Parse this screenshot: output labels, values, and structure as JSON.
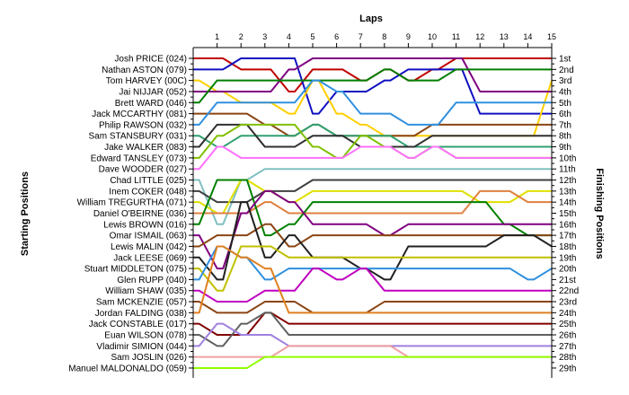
{
  "chart_data": {
    "type": "line",
    "title": "Laps",
    "ylabel_left": "Starting Positions",
    "ylabel_right": "Finishing Positions",
    "laps": [
      1,
      2,
      3,
      4,
      5,
      6,
      7,
      8,
      9,
      10,
      11,
      12,
      13,
      14,
      15
    ],
    "x_tick_labels": [
      "1",
      "2",
      "3",
      "4",
      "5",
      "6",
      "7",
      "8",
      "9",
      "10",
      "11",
      "12",
      "13",
      "14",
      "15"
    ],
    "y_range_positions": [
      1,
      29
    ],
    "grid": false,
    "start_labels": [
      "Josh PRICE (024)",
      "Nathan ASTON (079)",
      "Tom HARVEY (00C)",
      "Jai NIJJAR (052)",
      "Brett WARD (046)",
      "Jack MCCARTHY (081)",
      "Philip RAWSON (032)",
      "Sam STANSBURY (031)",
      "Jake WALKER (083)",
      "Edward TANSLEY (073)",
      "Dave WOODER (027)",
      "Chad LITTLE (025)",
      "Inem COKER (048)",
      "William TREGURTHA (071)",
      "Daniel O'BEIRNE (036)",
      "Lewis BROWN (016)",
      "Omar ISMAIL (063)",
      "Lewis MALIN (042)",
      "Jack LEESE (069)",
      "Stuart MIDDLETON (075)",
      "Glen RUPP (040)",
      "William SHAW (035)",
      "Sam MCKENZIE (057)",
      "Jordan FALDING (038)",
      "Jack CONSTABLE (017)",
      "Euan WILSON (078)",
      "Vladimir SIMION (044)",
      "Sam JOSLIN (026)",
      "Manuel MALDONALDO (059)"
    ],
    "finish_labels": [
      "1st",
      "2nd",
      "3rd",
      "4th",
      "5th",
      "6th",
      "7th",
      "8th",
      "9th",
      "10th",
      "11th",
      "12th",
      "13th",
      "14th",
      "15th",
      "16th",
      "17th",
      "18th",
      "19th",
      "20th",
      "21st",
      "22nd",
      "23rd",
      "24th",
      "25th",
      "26th",
      "27th",
      "28th",
      "29th"
    ],
    "series": [
      {
        "name": "Josh PRICE (024)",
        "color": "#c00000",
        "start": 1,
        "positions": [
          1,
          2,
          2,
          4,
          2,
          2,
          3,
          2,
          3,
          2,
          1,
          1,
          1,
          1,
          1
        ]
      },
      {
        "name": "Nathan ASTON (079)",
        "color": "#1010c0",
        "start": 2,
        "positions": [
          2,
          1,
          1,
          1,
          6,
          4,
          4,
          3,
          2,
          2,
          2,
          6,
          6,
          6,
          6
        ]
      },
      {
        "name": "Tom HARVEY (00C)",
        "color": "#ffd000",
        "start": 3,
        "positions": [
          4,
          5,
          5,
          6,
          3,
          6,
          7,
          8,
          8,
          8,
          8,
          8,
          8,
          8,
          3
        ]
      },
      {
        "name": "Jai NIJJAR (052)",
        "color": "#800080",
        "start": 4,
        "positions": [
          4,
          4,
          4,
          2,
          1,
          1,
          1,
          1,
          1,
          1,
          1,
          4,
          4,
          4,
          4
        ]
      },
      {
        "name": "Brett WARD (046)",
        "color": "#008000",
        "start": 5,
        "positions": [
          3,
          3,
          3,
          3,
          3,
          3,
          3,
          2,
          3,
          3,
          2,
          2,
          2,
          2,
          2
        ]
      },
      {
        "name": "Jack MCCARTHY (081)",
        "color": "#8b4513",
        "start": 6,
        "positions": [
          6,
          6,
          7,
          8,
          7,
          8,
          8,
          8,
          8,
          7,
          7,
          7,
          7,
          7,
          7
        ]
      },
      {
        "name": "Philip RAWSON (032)",
        "color": "#3090e0",
        "start": 7,
        "positions": [
          5,
          5,
          5,
          5,
          3,
          4,
          6,
          6,
          7,
          7,
          5,
          5,
          5,
          5,
          5
        ]
      },
      {
        "name": "Sam STANSBURY (031)",
        "color": "#30a070",
        "start": 8,
        "positions": [
          9,
          8,
          8,
          8,
          7,
          8,
          8,
          8,
          9,
          9,
          9,
          9,
          9,
          9,
          9
        ]
      },
      {
        "name": "Jake WALKER (083)",
        "color": "#303030",
        "start": 9,
        "positions": [
          7,
          7,
          9,
          9,
          8,
          8,
          9,
          9,
          9,
          8,
          8,
          8,
          8,
          8,
          8
        ]
      },
      {
        "name": "Edward TANSLEY (073)",
        "color": "#80c000",
        "start": 10,
        "positions": [
          8,
          7,
          7,
          7,
          9,
          10,
          8,
          9,
          10,
          9,
          10,
          10,
          10,
          10,
          10
        ]
      },
      {
        "name": "Dave WOODER (027)",
        "color": "#ff70ff",
        "start": 11,
        "positions": [
          9,
          10,
          10,
          10,
          10,
          10,
          9,
          9,
          10,
          9,
          10,
          10,
          10,
          10,
          10
        ]
      },
      {
        "name": "Chad LITTLE (025)",
        "color": "#80c0c0",
        "start": 12,
        "positions": [
          16,
          12,
          11,
          11,
          11,
          11,
          11,
          11,
          11,
          11,
          11,
          11,
          11,
          11,
          11
        ]
      },
      {
        "name": "Inem COKER (048)",
        "color": "#404040",
        "start": 13,
        "positions": [
          14,
          14,
          13,
          13,
          12,
          12,
          12,
          12,
          12,
          12,
          12,
          12,
          12,
          12,
          12
        ]
      },
      {
        "name": "William TREGURTHA (071)",
        "color": "#e0e000",
        "start": 14,
        "positions": [
          15,
          12,
          13,
          14,
          13,
          13,
          13,
          13,
          13,
          13,
          13,
          14,
          14,
          13,
          13
        ]
      },
      {
        "name": "Daniel O'BEIRNE (036)",
        "color": "#e08040",
        "start": 15,
        "positions": [
          15,
          15,
          14,
          15,
          15,
          15,
          15,
          15,
          15,
          15,
          15,
          13,
          13,
          14,
          14
        ]
      },
      {
        "name": "Lewis BROWN (016)",
        "color": "#008000",
        "start": 16,
        "positions": [
          12,
          12,
          17,
          16,
          14,
          14,
          14,
          14,
          14,
          14,
          14,
          14,
          16,
          17,
          17
        ]
      },
      {
        "name": "Omar ISMAIL (063)",
        "color": "#800080",
        "start": 17,
        "positions": [
          20,
          15,
          13,
          14,
          16,
          16,
          16,
          17,
          16,
          16,
          16,
          16,
          16,
          16,
          16
        ]
      },
      {
        "name": "Lewis MALIN (042)",
        "color": "#8b4513",
        "start": 18,
        "positions": [
          17,
          17,
          16,
          18,
          17,
          17,
          17,
          17,
          17,
          17,
          17,
          17,
          17,
          17,
          17
        ]
      },
      {
        "name": "Jack LEESE (069)",
        "color": "#202020",
        "start": 19,
        "positions": [
          21,
          14,
          19,
          17,
          19,
          19,
          20,
          21,
          18,
          18,
          18,
          18,
          17,
          17,
          18
        ]
      },
      {
        "name": "Stuart MIDDLETON (075)",
        "color": "#c0c000",
        "start": 20,
        "positions": [
          22,
          18,
          18,
          19,
          19,
          19,
          19,
          19,
          19,
          19,
          19,
          19,
          19,
          19,
          19
        ]
      },
      {
        "name": "Glen RUPP (040)",
        "color": "#3090e0",
        "start": 21,
        "positions": [
          18,
          19,
          21,
          20,
          20,
          20,
          20,
          20,
          20,
          20,
          20,
          20,
          20,
          21,
          20
        ]
      },
      {
        "name": "William SHAW (035)",
        "color": "#c000c0",
        "start": 22,
        "positions": [
          23,
          23,
          22,
          22,
          20,
          21,
          20,
          22,
          22,
          22,
          22,
          22,
          22,
          22,
          22
        ]
      },
      {
        "name": "Sam MCKENZIE (057)",
        "color": "#8b4513",
        "start": 23,
        "positions": [
          24,
          24,
          23,
          23,
          24,
          24,
          24,
          23,
          23,
          23,
          23,
          23,
          23,
          23,
          23
        ]
      },
      {
        "name": "Jordan FALDING (038)",
        "color": "#e08020",
        "start": 24,
        "positions": [
          18,
          19,
          20,
          24,
          24,
          24,
          24,
          24,
          24,
          24,
          24,
          24,
          24,
          24,
          24
        ]
      },
      {
        "name": "Jack CONSTABLE (017)",
        "color": "#800000",
        "start": 25,
        "positions": [
          26,
          26,
          24,
          25,
          25,
          25,
          25,
          25,
          25,
          25,
          25,
          25,
          25,
          25,
          25
        ]
      },
      {
        "name": "Euan WILSON (078)",
        "color": "#606060",
        "start": 26,
        "positions": [
          27,
          25,
          24,
          26,
          26,
          26,
          26,
          26,
          26,
          26,
          26,
          26,
          26,
          26,
          26
        ]
      },
      {
        "name": "Vladimir SIMION (044)",
        "color": "#a080e0",
        "start": 27,
        "positions": [
          25,
          26,
          26,
          27,
          27,
          27,
          27,
          27,
          27,
          27,
          27,
          27,
          27,
          27,
          27
        ]
      },
      {
        "name": "Sam JOSLIN (026)",
        "color": "#f0a0a0",
        "start": 28,
        "positions": [
          28,
          28,
          28,
          27,
          27,
          27,
          27,
          27,
          28,
          28,
          28,
          28,
          28,
          28,
          28
        ]
      },
      {
        "name": "Manuel MALDONALDO (059)",
        "color": "#90ff00",
        "start": 29,
        "positions": [
          29,
          29,
          28,
          28,
          28,
          28,
          28,
          28,
          28,
          28,
          28,
          28,
          28,
          28,
          28
        ]
      }
    ]
  }
}
